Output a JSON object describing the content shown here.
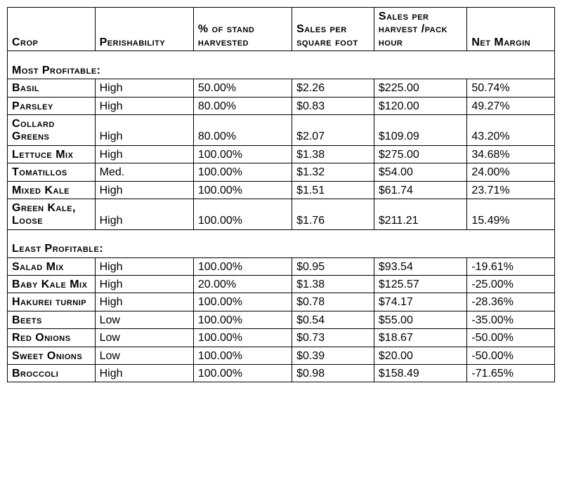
{
  "table": {
    "columns": [
      {
        "key": "crop",
        "label": "Crop",
        "class": "col-crop"
      },
      {
        "key": "perish",
        "label": "Perishability",
        "class": "col-perish"
      },
      {
        "key": "pct",
        "label": "% of stand harvested",
        "class": "col-pct"
      },
      {
        "key": "sqft",
        "label": "Sales per square foot",
        "class": "col-sqft"
      },
      {
        "key": "hour",
        "label": "Sales per harvest /pack hour",
        "class": "col-hour"
      },
      {
        "key": "margin",
        "label": "Net Margin",
        "class": "col-margin"
      }
    ],
    "sections": [
      {
        "title": "Most Profitable:",
        "rows": [
          {
            "crop": "Basil",
            "perish": "High",
            "pct": "50.00%",
            "sqft": "$2.26",
            "hour": "$225.00",
            "margin": "50.74%"
          },
          {
            "crop": "Parsley",
            "perish": "High",
            "pct": "80.00%",
            "sqft": "$0.83",
            "hour": "$120.00",
            "margin": "49.27%"
          },
          {
            "crop": "Collard Greens",
            "perish": "High",
            "pct": "80.00%",
            "sqft": "$2.07",
            "hour": "$109.09",
            "margin": "43.20%"
          },
          {
            "crop": "Lettuce Mix",
            "perish": "High",
            "pct": "100.00%",
            "sqft": "$1.38",
            "hour": "$275.00",
            "margin": "34.68%"
          },
          {
            "crop": "Tomatillos",
            "perish": "Med.",
            "pct": "100.00%",
            "sqft": "$1.32",
            "hour": "$54.00",
            "margin": "24.00%"
          },
          {
            "crop": "Mixed Kale",
            "perish": "High",
            "pct": "100.00%",
            "sqft": "$1.51",
            "hour": "$61.74",
            "margin": "23.71%"
          },
          {
            "crop": "Green Kale, Loose",
            "perish": "High",
            "pct": "100.00%",
            "sqft": "$1.76",
            "hour": "$211.21",
            "margin": "15.49%"
          }
        ]
      },
      {
        "title": "Least Profitable:",
        "rows": [
          {
            "crop": "Salad Mix",
            "perish": "High",
            "pct": "100.00%",
            "sqft": "$0.95",
            "hour": "$93.54",
            "margin": "-19.61%"
          },
          {
            "crop": "Baby Kale Mix",
            "perish": "High",
            "pct": "20.00%",
            "sqft": "$1.38",
            "hour": "$125.57",
            "margin": "-25.00%"
          },
          {
            "crop": "Hakurei turnip",
            "perish": "High",
            "pct": "100.00%",
            "sqft": "$0.78",
            "hour": "$74.17",
            "margin": "-28.36%"
          },
          {
            "crop": "Beets",
            "perish": "Low",
            "pct": "100.00%",
            "sqft": "$0.54",
            "hour": "$55.00",
            "margin": "-35.00%"
          },
          {
            "crop": "Red Onions",
            "perish": "Low",
            "pct": "100.00%",
            "sqft": "$0.73",
            "hour": "$18.67",
            "margin": "-50.00%"
          },
          {
            "crop": "Sweet Onions",
            "perish": "Low",
            "pct": "100.00%",
            "sqft": "$0.39",
            "hour": "$20.00",
            "margin": "-50.00%"
          },
          {
            "crop": "Broccoli",
            "perish": "High",
            "pct": "100.00%",
            "sqft": "$0.98",
            "hour": "$158.49",
            "margin": "-71.65%"
          }
        ]
      }
    ]
  }
}
